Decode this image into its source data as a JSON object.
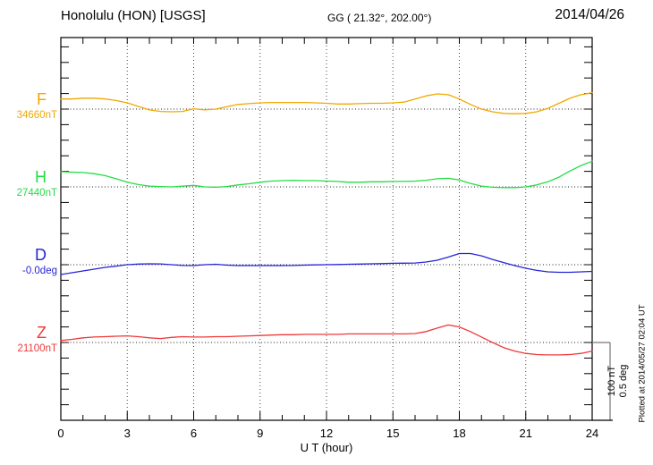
{
  "header": {
    "station_title": "Honolulu (HON)  [USGS]",
    "gg_coords": "GG ( 21.32°, 202.00°)",
    "date": "2014/04/26"
  },
  "annotations": {
    "plotted_at": "Plotted at 2014/05/27 02:04 UT",
    "scale_bar_nt": "100 nT",
    "scale_bar_deg": "0.5 deg"
  },
  "axis": {
    "xlabel": "U T (hour)",
    "hour_labels": [
      "0",
      "3",
      "6",
      "9",
      "12",
      "15",
      "18",
      "21",
      "24"
    ]
  },
  "chart_data": {
    "type": "line",
    "title": "Honolulu (HON) [USGS] magnetogram 2014/04/26",
    "xlabel": "U T (hour)",
    "x_range": [
      0,
      24
    ],
    "x_major_ticks": [
      0,
      3,
      6,
      9,
      12,
      15,
      18,
      21,
      24
    ],
    "x_minor_step": 1,
    "grid": "vertical dotted lines at 3-hour marks; dotted horizontal baseline per trace",
    "legend_position": "left of plot, one colored label per trace",
    "scale_bar": {
      "nT": 100,
      "deg": 0.5,
      "nt_label": "100 nT",
      "deg_label": "0.5 deg"
    },
    "hours_start": 0,
    "hours_step": 0.5,
    "series": [
      {
        "name": "F",
        "unit": "nT",
        "base": 34660,
        "base_label": "34660nT",
        "color": "#F0A800",
        "offsets": [
          13,
          13,
          14,
          14,
          13,
          11,
          8,
          3.5,
          -1,
          -3,
          -3.5,
          -3,
          0.5,
          -1,
          0,
          3,
          6,
          7,
          8,
          8.5,
          8.5,
          8.5,
          8.5,
          8,
          7.5,
          6.5,
          6.5,
          7,
          7.5,
          7.5,
          8,
          9,
          13,
          17,
          19.5,
          18.5,
          13,
          6,
          0,
          -3.5,
          -5.5,
          -6,
          -5.5,
          -3.5,
          1,
          7.5,
          14,
          18.5,
          21
        ]
      },
      {
        "name": "H",
        "unit": "nT",
        "base": 27440,
        "base_label": "27440nT",
        "color": "#22DD44",
        "offsets": [
          19.5,
          19,
          18.5,
          17,
          14.5,
          10.5,
          6,
          3,
          1,
          0.5,
          0,
          1,
          2,
          0,
          -0.5,
          0.5,
          2.5,
          4,
          6,
          7.5,
          8,
          8.5,
          8,
          8,
          7.5,
          7,
          6,
          6,
          6.5,
          6.5,
          7,
          7,
          7.5,
          8.5,
          10.5,
          11,
          9,
          4.5,
          1,
          -0.5,
          -1,
          -1,
          0,
          2.5,
          6.5,
          12.5,
          20.5,
          27.5,
          33
        ]
      },
      {
        "name": "D",
        "unit": "deg",
        "base": -0.0,
        "base_label": "-0.0deg",
        "color": "#2525D8",
        "offsets": [
          -0.063,
          -0.052,
          -0.04,
          -0.029,
          -0.017,
          -0.009,
          0,
          0.004,
          0.006,
          0.005,
          0,
          -0.005,
          -0.006,
          0,
          0.003,
          -0.003,
          -0.006,
          -0.006,
          -0.006,
          -0.006,
          -0.006,
          -0.005,
          -0.003,
          -0.001,
          0,
          0.001,
          0.003,
          0.004,
          0.006,
          0.007,
          0.009,
          0.01,
          0.011,
          0.017,
          0.029,
          0.049,
          0.072,
          0.072,
          0.057,
          0.034,
          0.014,
          -0.006,
          -0.023,
          -0.037,
          -0.046,
          -0.049,
          -0.049,
          -0.046,
          -0.043
        ]
      },
      {
        "name": "Z",
        "unit": "nT",
        "base": 21100,
        "base_label": "21100nT",
        "color": "#EE3838",
        "offsets": [
          2.5,
          4,
          6,
          7,
          7.5,
          8,
          8.5,
          7.5,
          6,
          5,
          6.5,
          7.5,
          7,
          7,
          7.5,
          7.5,
          8,
          8.5,
          9,
          9.5,
          10,
          10,
          10.5,
          10.5,
          10.5,
          10.5,
          11,
          11,
          11,
          11,
          11,
          11,
          11.5,
          14,
          18.5,
          22.5,
          20,
          14,
          7,
          0,
          -6.5,
          -11,
          -14,
          -15.5,
          -16,
          -16,
          -15.5,
          -14,
          -11
        ]
      }
    ]
  }
}
